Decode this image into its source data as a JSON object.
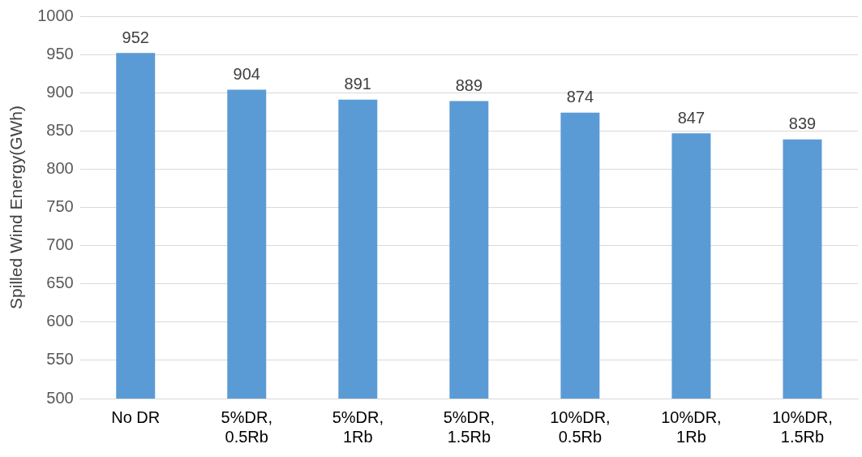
{
  "chart_data": {
    "type": "bar",
    "ylabel": "Spilled Wind Energy(GWh)",
    "categories": [
      "No DR",
      "5%DR, 0.5Rb",
      "5%DR, 1Rb",
      "5%DR, 1.5Rb",
      "10%DR, 0.5Rb",
      "10%DR, 1Rb",
      "10%DR, 1.5Rb"
    ],
    "values": [
      952,
      904,
      891,
      889,
      874,
      847,
      839
    ],
    "color": "#5b9bd5",
    "ylim": [
      500,
      1000
    ],
    "yticks": [
      500,
      550,
      600,
      650,
      700,
      750,
      800,
      850,
      900,
      950,
      1000
    ],
    "grid": "y",
    "data_labels": true,
    "legend": false
  }
}
